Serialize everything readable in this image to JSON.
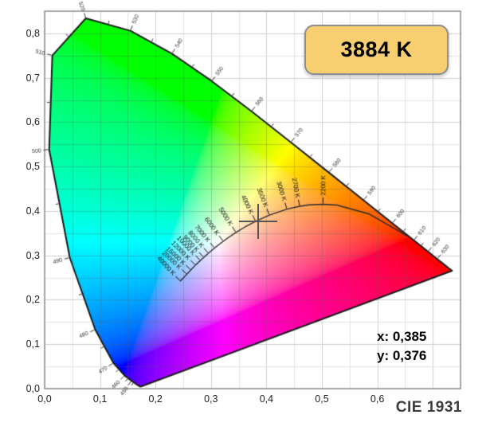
{
  "page": {
    "background": "#ffffff"
  },
  "badge": {
    "label": "3884 K",
    "bg": "#F8CF70",
    "border": "#8F8F8F",
    "text_color": "#000000"
  },
  "readout": {
    "x_label": "x: 0,385",
    "y_label": "y: 0,376"
  },
  "chart_data": {
    "type": "scatter",
    "subtype": "cie-1931-chromaticity-diagram",
    "title": "CIE 1931",
    "xlabel": "",
    "ylabel": "",
    "xlim": [
      0,
      0.75
    ],
    "ylim": [
      0,
      0.85
    ],
    "grid": true,
    "grid_minor_step": 0.05,
    "x_ticks": {
      "values": [
        0,
        0.1,
        0.2,
        0.3,
        0.4,
        0.5,
        0.6
      ],
      "labels": [
        "0,0",
        "0,1",
        "0,2",
        "0,3",
        "0,4",
        "0,5",
        "0,6"
      ]
    },
    "y_ticks": {
      "values": [
        0,
        0.1,
        0.2,
        0.3,
        0.4,
        0.5,
        0.6,
        0.7,
        0.8
      ],
      "labels": [
        "0,0",
        "0,1",
        "0,2",
        "0,3",
        "0,4",
        "0,5",
        "0,6",
        "0,7",
        "0,8"
      ]
    },
    "marker": {
      "x": 0.385,
      "y": 0.376
    },
    "spectral_locus": [
      [
        380,
        0.1741,
        0.005
      ],
      [
        390,
        0.1738,
        0.0049
      ],
      [
        400,
        0.1733,
        0.0048
      ],
      [
        410,
        0.1726,
        0.0048
      ],
      [
        420,
        0.1714,
        0.0051
      ],
      [
        430,
        0.1689,
        0.0069
      ],
      [
        440,
        0.1644,
        0.0109
      ],
      [
        450,
        0.1566,
        0.0177
      ],
      [
        460,
        0.144,
        0.0297
      ],
      [
        470,
        0.1241,
        0.0578
      ],
      [
        480,
        0.0913,
        0.1327
      ],
      [
        490,
        0.0454,
        0.295
      ],
      [
        500,
        0.0082,
        0.5384
      ],
      [
        510,
        0.0139,
        0.7502
      ],
      [
        520,
        0.0743,
        0.8338
      ],
      [
        530,
        0.1547,
        0.8059
      ],
      [
        540,
        0.2296,
        0.7543
      ],
      [
        550,
        0.3016,
        0.6923
      ],
      [
        560,
        0.3731,
        0.6245
      ],
      [
        570,
        0.4441,
        0.5547
      ],
      [
        580,
        0.5125,
        0.4866
      ],
      [
        590,
        0.5752,
        0.4242
      ],
      [
        600,
        0.627,
        0.3725
      ],
      [
        610,
        0.6658,
        0.334
      ],
      [
        620,
        0.6915,
        0.3083
      ],
      [
        630,
        0.7079,
        0.292
      ],
      [
        640,
        0.719,
        0.2809
      ],
      [
        650,
        0.726,
        0.274
      ],
      [
        660,
        0.73,
        0.27
      ],
      [
        670,
        0.732,
        0.268
      ],
      [
        680,
        0.7334,
        0.2666
      ],
      [
        690,
        0.7344,
        0.2656
      ],
      [
        700,
        0.7347,
        0.2653
      ]
    ],
    "wavelength_labels": [
      450,
      460,
      470,
      480,
      490,
      500,
      510,
      520,
      530,
      540,
      550,
      560,
      570,
      580,
      590,
      600,
      610,
      620,
      630
    ],
    "planckian_locus": [
      [
        1000,
        0.6528,
        0.3444
      ],
      [
        1500,
        0.5857,
        0.3931
      ],
      [
        2000,
        0.5267,
        0.4133
      ],
      [
        2200,
        0.502,
        0.4152
      ],
      [
        2500,
        0.477,
        0.4137
      ],
      [
        2700,
        0.4599,
        0.4106
      ],
      [
        3000,
        0.4369,
        0.4041
      ],
      [
        3500,
        0.4053,
        0.3907
      ],
      [
        4000,
        0.3805,
        0.3768
      ],
      [
        4500,
        0.3608,
        0.3636
      ],
      [
        5000,
        0.3451,
        0.3516
      ],
      [
        5500,
        0.3325,
        0.3411
      ],
      [
        6000,
        0.3221,
        0.3318
      ],
      [
        6500,
        0.3135,
        0.3237
      ],
      [
        7000,
        0.3064,
        0.3166
      ],
      [
        8000,
        0.2952,
        0.3048
      ],
      [
        9000,
        0.2869,
        0.2956
      ],
      [
        10000,
        0.2807,
        0.2884
      ],
      [
        12000,
        0.2719,
        0.2782
      ],
      [
        15000,
        0.2637,
        0.2673
      ],
      [
        20000,
        0.2565,
        0.2577
      ],
      [
        25000,
        0.2523,
        0.2522
      ],
      [
        30000,
        0.249,
        0.2475
      ],
      [
        40000,
        0.2444,
        0.2423
      ]
    ],
    "temperature_labels": [
      {
        "t": 2200,
        "label": "2200 K"
      },
      {
        "t": 2700,
        "label": "2700 K"
      },
      {
        "t": 3000,
        "label": "3000 K"
      },
      {
        "t": 3500,
        "label": "3500 K"
      },
      {
        "t": 4000,
        "label": "4000 K"
      },
      {
        "t": 5000,
        "label": "5000 K"
      },
      {
        "t": 6000,
        "label": "6000 K"
      },
      {
        "t": 7000,
        "label": "7000 K"
      },
      {
        "t": 8000,
        "label": "8000 K"
      },
      {
        "t": 9000,
        "label": "9000 K"
      },
      {
        "t": 10000,
        "label": "10000 K"
      },
      {
        "t": 12000,
        "label": "12000 K"
      },
      {
        "t": 15000,
        "label": "15000 K"
      },
      {
        "t": 20000,
        "label": "20000 K"
      },
      {
        "t": 40000,
        "label": "40000 K"
      }
    ],
    "colors": {
      "crosshair": "#555555",
      "outline": "#1b1b1b",
      "planckian": "#2b2b2b",
      "grid_minor": "#e3e3e3",
      "grid_major": "#cfcfcf",
      "frame": "#8f8f8f",
      "wavelength_text": "#333333",
      "temperature_text": "#111111",
      "axis_text": "#222222"
    }
  }
}
